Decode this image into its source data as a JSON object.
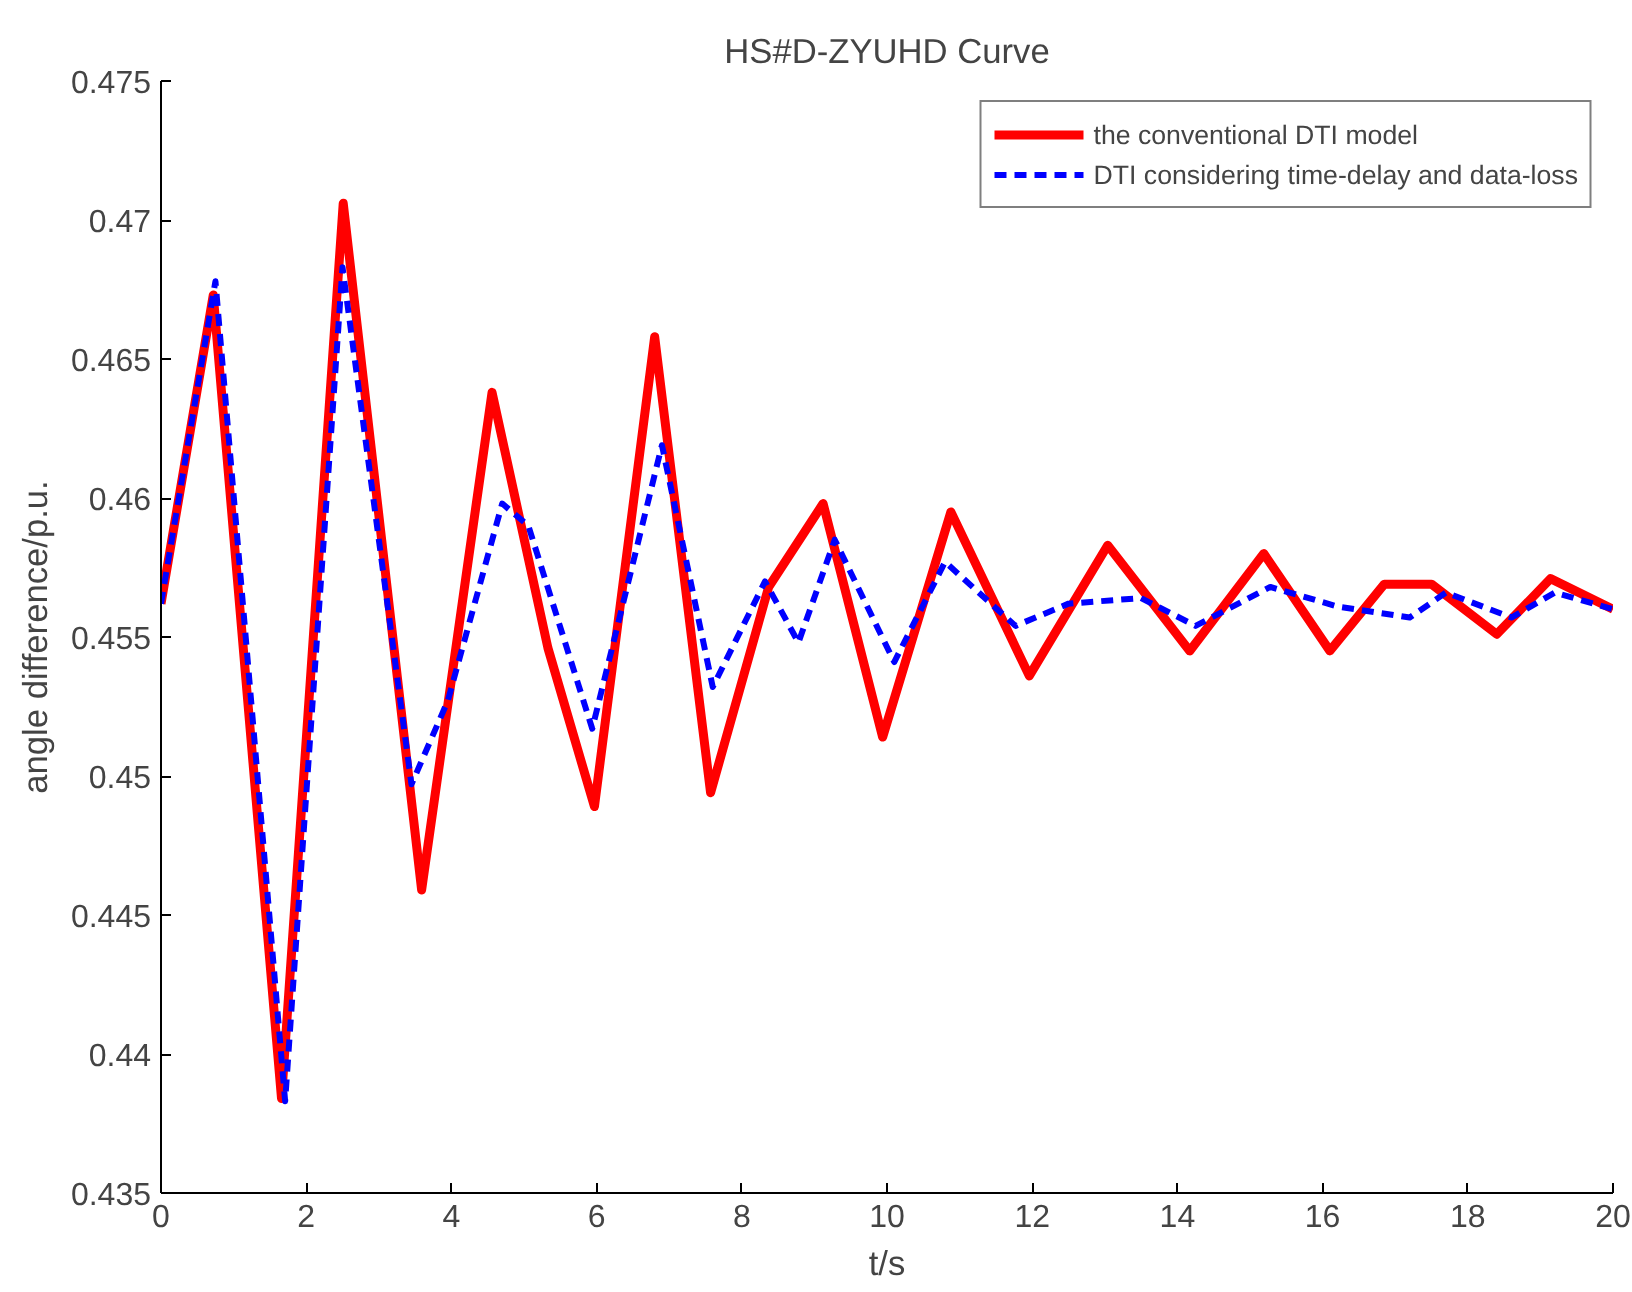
{
  "chart_data": {
    "type": "line",
    "title": "HS#D-ZYUHD Curve",
    "xlabel": "t/s",
    "ylabel": "angle difference/p.u.",
    "xlim": [
      0,
      20
    ],
    "ylim": [
      0.435,
      0.475
    ],
    "xticks": [
      0,
      2,
      4,
      6,
      8,
      10,
      12,
      14,
      16,
      18,
      20
    ],
    "yticks": [
      0.435,
      0.44,
      0.445,
      0.45,
      0.455,
      0.46,
      0.465,
      0.47,
      0.475
    ],
    "grid": false,
    "legend": "top right",
    "series": [
      {
        "name": "the conventional DTI model",
        "color": "#ff0000",
        "line_style": "solid",
        "x": [
          0,
          0.72,
          1.66,
          2.51,
          3.59,
          4.56,
          5.33,
          5.97,
          6.8,
          7.57,
          8.37,
          9.12,
          9.94,
          10.88,
          11.96,
          13.04,
          14.17,
          15.19,
          16.1,
          16.85,
          17.5,
          18.4,
          19.14,
          20
        ],
        "values": [
          0.4562,
          0.4673,
          0.4384,
          0.4706,
          0.4459,
          0.4638,
          0.4546,
          0.4489,
          0.4658,
          0.4494,
          0.4568,
          0.4598,
          0.4514,
          0.4595,
          0.4536,
          0.4583,
          0.4545,
          0.458,
          0.4545,
          0.4569,
          0.4569,
          0.4551,
          0.4571,
          0.456
        ]
      },
      {
        "name": "DTI considering time-delay and data-loss",
        "color": "#0000ff",
        "line_style": "dashed",
        "x": [
          0,
          0.75,
          1.71,
          2.5,
          3.45,
          3.95,
          4.7,
          5.06,
          5.94,
          6.9,
          7.6,
          8.32,
          8.78,
          9.28,
          10.1,
          10.8,
          11.77,
          12.5,
          13.5,
          14.25,
          15.28,
          16.2,
          17.2,
          17.7,
          18.6,
          19.2,
          20
        ],
        "values": [
          0.4562,
          0.4678,
          0.4383,
          0.4683,
          0.4497,
          0.4527,
          0.4598,
          0.459,
          0.4517,
          0.4619,
          0.4532,
          0.457,
          0.4548,
          0.4585,
          0.4541,
          0.4577,
          0.4554,
          0.4562,
          0.4564,
          0.4554,
          0.4568,
          0.4561,
          0.4557,
          0.4566,
          0.4557,
          0.4566,
          0.456
        ]
      }
    ]
  }
}
